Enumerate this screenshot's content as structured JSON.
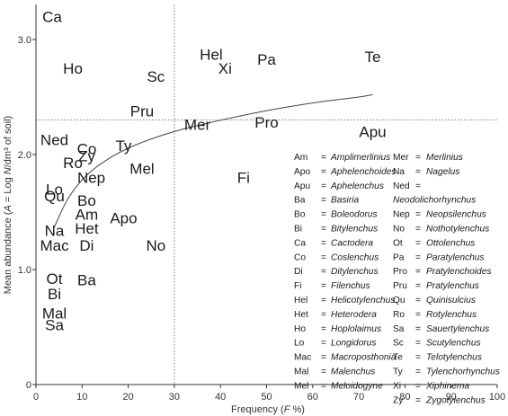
{
  "chart_data": {
    "type": "scatter",
    "title": "",
    "xlabel": "Frequency (F %)",
    "ylabel": "Mean abundance (A = Log N/dm³ of soil)",
    "xlim": [
      0,
      100
    ],
    "ylim": [
      0,
      3.3
    ],
    "x_ticks": [
      "0",
      "10",
      "20",
      "30",
      "40",
      "50",
      "60",
      "70",
      "80",
      "90",
      "100"
    ],
    "y_ticks": [
      "0",
      "1.0",
      "2.0",
      "3.0"
    ],
    "reference_lines": {
      "x": 30,
      "y": 2.3
    },
    "trend_curve": [
      {
        "x": 4,
        "y": 1.37
      },
      {
        "x": 7,
        "y": 1.62
      },
      {
        "x": 11,
        "y": 1.82
      },
      {
        "x": 16,
        "y": 1.97
      },
      {
        "x": 22,
        "y": 2.09
      },
      {
        "x": 30,
        "y": 2.2
      },
      {
        "x": 38,
        "y": 2.28
      },
      {
        "x": 46,
        "y": 2.35
      },
      {
        "x": 54,
        "y": 2.41
      },
      {
        "x": 62,
        "y": 2.46
      },
      {
        "x": 70,
        "y": 2.5
      },
      {
        "x": 73,
        "y": 2.52
      }
    ],
    "points": [
      {
        "label": "Ca",
        "x": 3.5,
        "y": 3.2
      },
      {
        "label": "Ho",
        "x": 8,
        "y": 2.75
      },
      {
        "label": "Sc",
        "x": 26,
        "y": 2.68
      },
      {
        "label": "Pru",
        "x": 23,
        "y": 2.38
      },
      {
        "label": "Hel",
        "x": 38,
        "y": 2.87
      },
      {
        "label": "Xi",
        "x": 41,
        "y": 2.75
      },
      {
        "label": "Pa",
        "x": 50,
        "y": 2.83
      },
      {
        "label": "Te",
        "x": 73,
        "y": 2.85
      },
      {
        "label": "Mer",
        "x": 35,
        "y": 2.26
      },
      {
        "label": "Pro",
        "x": 50,
        "y": 2.28
      },
      {
        "label": "Apu",
        "x": 73,
        "y": 2.2
      },
      {
        "label": "Ned",
        "x": 4,
        "y": 2.13
      },
      {
        "label": "Co",
        "x": 11,
        "y": 2.05
      },
      {
        "label": "Zy",
        "x": 11,
        "y": 1.99
      },
      {
        "label": "Ty",
        "x": 19,
        "y": 2.08
      },
      {
        "label": "Ro",
        "x": 8,
        "y": 1.93
      },
      {
        "label": "Mel",
        "x": 23,
        "y": 1.88
      },
      {
        "label": "Nep",
        "x": 12,
        "y": 1.8
      },
      {
        "label": "Fi",
        "x": 45,
        "y": 1.8
      },
      {
        "label": "Lo",
        "x": 4,
        "y": 1.7
      },
      {
        "label": "Qu",
        "x": 4,
        "y": 1.64
      },
      {
        "label": "Bo",
        "x": 11,
        "y": 1.6
      },
      {
        "label": "Am",
        "x": 11,
        "y": 1.48
      },
      {
        "label": "Apo",
        "x": 19,
        "y": 1.45
      },
      {
        "label": "Het",
        "x": 11,
        "y": 1.36
      },
      {
        "label": "Na",
        "x": 4,
        "y": 1.34
      },
      {
        "label": "Mac",
        "x": 4,
        "y": 1.21
      },
      {
        "label": "Di",
        "x": 11,
        "y": 1.21
      },
      {
        "label": "No",
        "x": 26,
        "y": 1.21
      },
      {
        "label": "Ot",
        "x": 4,
        "y": 0.92
      },
      {
        "label": "Ba",
        "x": 11,
        "y": 0.91
      },
      {
        "label": "Bi",
        "x": 4,
        "y": 0.79
      },
      {
        "label": "Mal",
        "x": 4,
        "y": 0.62
      },
      {
        "label": "Sa",
        "x": 4,
        "y": 0.52
      }
    ],
    "legend_left": [
      {
        "abbr": "Am",
        "genus": "Amplimerlinius"
      },
      {
        "abbr": "Apo",
        "genus": "Aphelenchoides"
      },
      {
        "abbr": "Apu",
        "genus": "Aphelenchus"
      },
      {
        "abbr": "Ba",
        "genus": "Basiria"
      },
      {
        "abbr": "Bo",
        "genus": "Boleodorus"
      },
      {
        "abbr": "Bi",
        "genus": "Bitylenchus"
      },
      {
        "abbr": "Ca",
        "genus": "Cactodera"
      },
      {
        "abbr": "Co",
        "genus": "Coslenchus"
      },
      {
        "abbr": "Di",
        "genus": "Ditylenchus"
      },
      {
        "abbr": "Fi",
        "genus": "Filenchus"
      },
      {
        "abbr": "Hel",
        "genus": "Helicotylenchus"
      },
      {
        "abbr": "Het",
        "genus": "Heterodera"
      },
      {
        "abbr": "Ho",
        "genus": "Hoplolaimus"
      },
      {
        "abbr": "Lo",
        "genus": "Longidorus"
      },
      {
        "abbr": "Mac",
        "genus": "Macroposthonia"
      },
      {
        "abbr": "Mal",
        "genus": "Malenchus"
      },
      {
        "abbr": "Mel",
        "genus": "Meloidogyne"
      }
    ],
    "legend_right": [
      {
        "abbr": "Mer",
        "genus": "Merlinius"
      },
      {
        "abbr": "Na",
        "genus": "Nagelus"
      },
      {
        "abbr": "Ned",
        "genus": "Neodolichorhynchus"
      },
      {
        "abbr": "Nep",
        "genus": "Neopsilenchus"
      },
      {
        "abbr": "No",
        "genus": "Nothotylenchus"
      },
      {
        "abbr": "Ot",
        "genus": "Ottolenchus"
      },
      {
        "abbr": "Pa",
        "genus": "Paratylenchus"
      },
      {
        "abbr": "Pro",
        "genus": "Pratylenchoides"
      },
      {
        "abbr": "Pru",
        "genus": "Pratylenchus"
      },
      {
        "abbr": "Qu",
        "genus": "Quinisulcius"
      },
      {
        "abbr": "Ro",
        "genus": "Rotylenchus"
      },
      {
        "abbr": "Sa",
        "genus": "Sauertylenchus"
      },
      {
        "abbr": "Sc",
        "genus": "Scutylenchus"
      },
      {
        "abbr": "Te",
        "genus": "Telotylenchus"
      },
      {
        "abbr": "Ty",
        "genus": "Tylenchorhynchus"
      },
      {
        "abbr": "Xi",
        "genus": "Xiphinema"
      },
      {
        "abbr": "Zy",
        "genus": "Zygotylenchus"
      }
    ],
    "colors": {
      "axis": "#333333",
      "text": "#1a1a1a",
      "curve": "#444444",
      "reference": "#555555"
    }
  }
}
